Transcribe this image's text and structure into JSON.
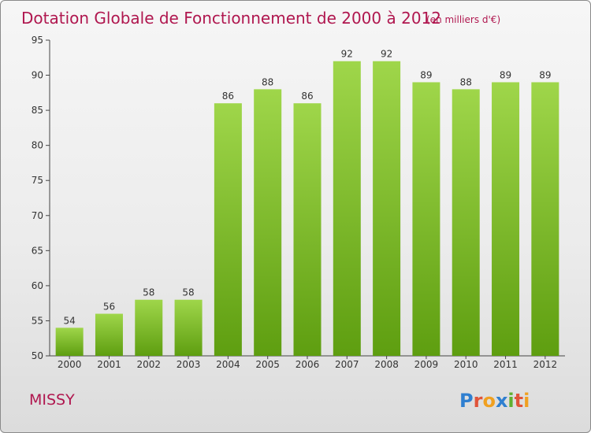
{
  "chart_data": {
    "type": "bar",
    "title": "Dotation Globale de Fonctionnement de 2000 à 2012",
    "subtitle": "(en milliers d'€)",
    "categories": [
      "2000",
      "2001",
      "2002",
      "2003",
      "2004",
      "2005",
      "2006",
      "2007",
      "2008",
      "2009",
      "2010",
      "2011",
      "2012"
    ],
    "values": [
      54,
      56,
      58,
      58,
      86,
      88,
      86,
      92,
      92,
      89,
      88,
      89,
      89
    ],
    "ylim": [
      50,
      95
    ],
    "yticks": [
      50,
      55,
      60,
      65,
      70,
      75,
      80,
      85,
      90,
      95
    ],
    "grid": false,
    "bar_color": "#7cc22a"
  },
  "commune": "MISSY",
  "logo": {
    "text": "Proxiti",
    "letters": [
      "P",
      "r",
      "o",
      "x",
      "i",
      "t",
      "i"
    ],
    "colors": [
      "#2f7fd0",
      "#e0543a",
      "#f0a020",
      "#2f7fd0",
      "#60b030",
      "#e0543a",
      "#f0a020"
    ]
  }
}
